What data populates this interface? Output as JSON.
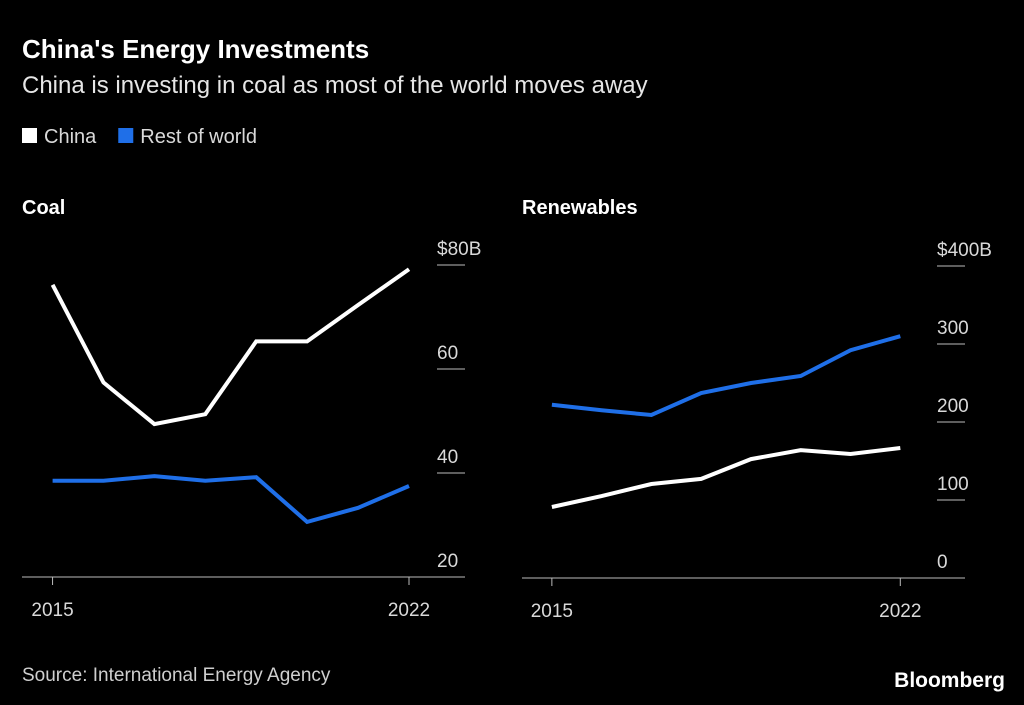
{
  "title": "China's Energy Investments",
  "subtitle": "China is investing in coal as most of the world moves away",
  "source": "Source: International Energy Agency",
  "brand": "Bloomberg",
  "chart_data": [
    {
      "type": "line",
      "title": "Coal",
      "x": [
        2015,
        2016,
        2017,
        2018,
        2019,
        2020,
        2021,
        2022
      ],
      "xlim": [
        2014.4,
        2023.1
      ],
      "xticks": [
        2015,
        2022
      ],
      "ylim": [
        20,
        80
      ],
      "yticks": [
        {
          "value": 80,
          "label": "$80B"
        },
        60,
        40,
        20
      ],
      "series": [
        {
          "name": "China",
          "color": "#ffffff",
          "values": [
            76.2,
            57.4,
            49.4,
            51.3,
            65.3,
            65.3,
            72.3,
            79.2
          ]
        },
        {
          "name": "Rest of world",
          "color": "#1f6fe8",
          "values": [
            38.5,
            38.5,
            39.4,
            38.5,
            39.2,
            30.6,
            33.3,
            37.5
          ]
        }
      ]
    },
    {
      "type": "line",
      "title": "Renewables",
      "x": [
        2015,
        2016,
        2017,
        2018,
        2019,
        2020,
        2021,
        2022
      ],
      "xlim": [
        2014.4,
        2023.3
      ],
      "xticks": [
        2015,
        2022
      ],
      "ylim": [
        0,
        400
      ],
      "yticks": [
        {
          "value": 400,
          "label": "$400B"
        },
        300,
        200,
        100,
        0
      ],
      "series": [
        {
          "name": "China",
          "color": "#ffffff",
          "values": [
            91,
            105,
            120.5,
            127,
            152.5,
            164,
            159,
            166.7
          ]
        },
        {
          "name": "Rest of world",
          "color": "#1f6fe8",
          "values": [
            222,
            215,
            209,
            237,
            250,
            259,
            292,
            310
          ]
        }
      ]
    }
  ]
}
